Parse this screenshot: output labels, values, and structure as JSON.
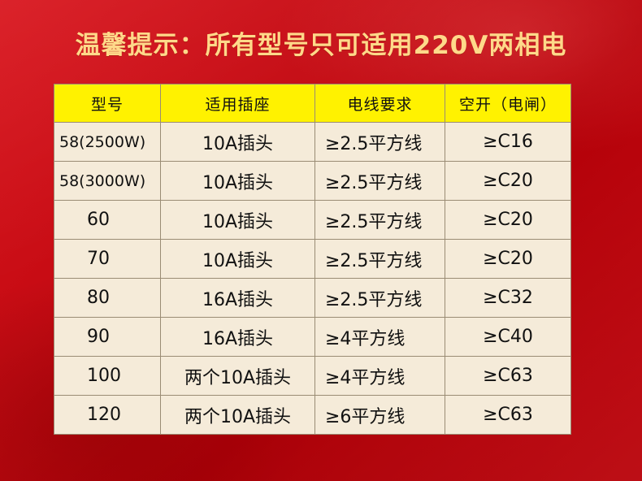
{
  "title": "温馨提示：所有型号只可适用220V两相电",
  "colors": {
    "background": "#c8101a",
    "title_text": "#ffd98a",
    "header_bg": "#fff200",
    "cell_bg": "#f5ebd9"
  },
  "table": {
    "headers": [
      "型号",
      "适用插座",
      "电线要求",
      "空开（电闸）"
    ],
    "rows": [
      {
        "model": "58(2500W)",
        "socket": "10A插头",
        "wire": "≥2.5平方线",
        "breaker": "≥C16"
      },
      {
        "model": "58(3000W)",
        "socket": "10A插头",
        "wire": "≥2.5平方线",
        "breaker": "≥C20"
      },
      {
        "model": "60",
        "socket": "10A插头",
        "wire": "≥2.5平方线",
        "breaker": "≥C20"
      },
      {
        "model": "70",
        "socket": "10A插头",
        "wire": "≥2.5平方线",
        "breaker": "≥C20"
      },
      {
        "model": "80",
        "socket": "16A插头",
        "wire": "≥2.5平方线",
        "breaker": "≥C32"
      },
      {
        "model": "90",
        "socket": "16A插头",
        "wire": "≥4平方线",
        "breaker": "≥C40"
      },
      {
        "model": "100",
        "socket": "两个10A插头",
        "wire": "≥4平方线",
        "breaker": "≥C63"
      },
      {
        "model": "120",
        "socket": "两个10A插头",
        "wire": "≥6平方线",
        "breaker": "≥C63"
      }
    ]
  }
}
